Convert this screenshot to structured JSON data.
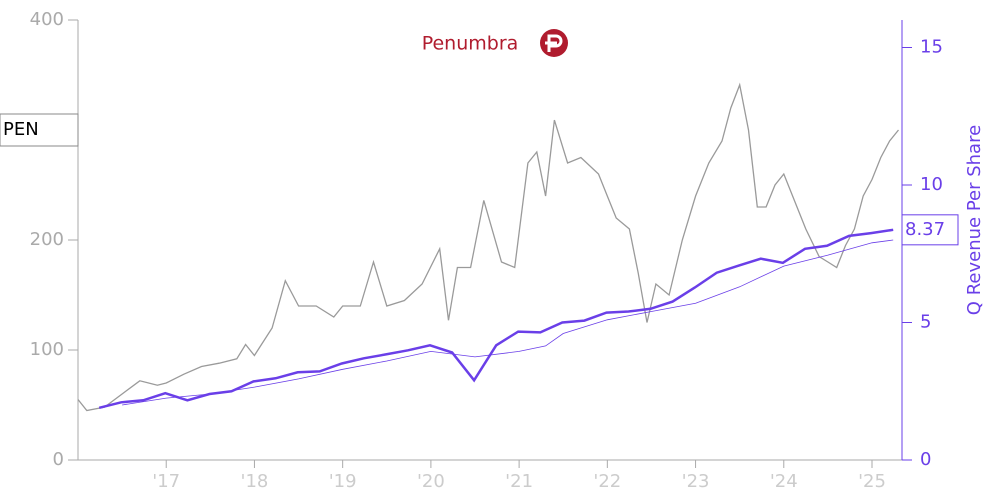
{
  "chart_data": {
    "type": "line",
    "logo": "Penumbra",
    "y2label": "Q Revenue Per Share",
    "xlim": [
      2016.0,
      2025.34
    ],
    "xticks": [
      {
        "value": 2017,
        "label": "'17"
      },
      {
        "value": 2018,
        "label": "'18"
      },
      {
        "value": 2019,
        "label": "'19"
      },
      {
        "value": 2020,
        "label": "'20"
      },
      {
        "value": 2021,
        "label": "'21"
      },
      {
        "value": 2022,
        "label": "'22"
      },
      {
        "value": 2023,
        "label": "'23"
      },
      {
        "value": 2024,
        "label": "'24"
      },
      {
        "value": 2025,
        "label": "'25"
      }
    ],
    "ylim": [
      0,
      400
    ],
    "yticks": [
      0,
      100,
      200,
      400
    ],
    "y2lim": [
      0,
      16
    ],
    "y2ticks": [
      0,
      5,
      10,
      15
    ],
    "series": [
      {
        "name": "PEN",
        "color": "#9a9a9a",
        "x": [
          2016.0,
          2016.1,
          2016.3,
          2016.5,
          2016.7,
          2016.9,
          2017.0,
          2017.2,
          2017.4,
          2017.6,
          2017.8,
          2017.9,
          2018.0,
          2018.2,
          2018.35,
          2018.5,
          2018.7,
          2018.9,
          2019.0,
          2019.2,
          2019.35,
          2019.5,
          2019.7,
          2019.9,
          2020.1,
          2020.2,
          2020.3,
          2020.45,
          2020.6,
          2020.8,
          2020.95,
          2021.1,
          2021.2,
          2021.3,
          2021.4,
          2021.55,
          2021.7,
          2021.9,
          2022.0,
          2022.1,
          2022.25,
          2022.35,
          2022.45,
          2022.55,
          2022.7,
          2022.85,
          2023.0,
          2023.15,
          2023.3,
          2023.4,
          2023.5,
          2023.6,
          2023.7,
          2023.8,
          2023.9,
          2024.0,
          2024.1,
          2024.25,
          2024.4,
          2024.5,
          2024.6,
          2024.7,
          2024.8,
          2024.9,
          2025.0,
          2025.1,
          2025.2,
          2025.3
        ],
        "values": [
          55,
          45,
          48,
          60,
          72,
          68,
          70,
          78,
          85,
          88,
          92,
          105,
          95,
          120,
          163,
          140,
          140,
          130,
          140,
          140,
          180,
          140,
          145,
          160,
          192,
          127,
          175,
          175,
          236,
          180,
          175,
          270,
          280,
          240,
          309,
          270,
          275,
          260,
          240,
          220,
          210,
          170,
          125,
          160,
          150,
          200,
          240,
          270,
          290,
          320,
          341,
          300,
          230,
          230,
          250,
          260,
          240,
          210,
          185,
          180,
          175,
          195,
          210,
          240,
          255,
          275,
          290,
          300
        ]
      },
      {
        "name": "Q Revenue Per Share",
        "color": "#6a3fe8",
        "axis": "y2",
        "x": [
          2016.24,
          2016.49,
          2016.74,
          2016.99,
          2017.24,
          2017.49,
          2017.74,
          2017.99,
          2018.24,
          2018.49,
          2018.74,
          2018.99,
          2019.24,
          2019.49,
          2019.74,
          2019.99,
          2020.24,
          2020.49,
          2020.74,
          2020.99,
          2021.24,
          2021.49,
          2021.74,
          2021.99,
          2022.24,
          2022.49,
          2022.74,
          2022.99,
          2023.24,
          2023.49,
          2023.74,
          2023.99,
          2024.24,
          2024.49,
          2024.74,
          2024.99,
          2025.24
        ],
        "values": [
          1.9,
          2.1,
          2.17,
          2.43,
          2.17,
          2.4,
          2.5,
          2.86,
          2.97,
          3.19,
          3.22,
          3.51,
          3.7,
          3.84,
          3.99,
          4.17,
          3.91,
          2.9,
          4.17,
          4.67,
          4.64,
          5.0,
          5.07,
          5.36,
          5.4,
          5.5,
          5.76,
          6.27,
          6.81,
          7.07,
          7.32,
          7.17,
          7.68,
          7.79,
          8.15,
          8.25,
          8.37
        ]
      },
      {
        "color": "#6a3fe8",
        "axis": "y2",
        "x": [
          2016.5,
          2017.0,
          2017.5,
          2018.0,
          2018.5,
          2019.0,
          2019.5,
          2020.0,
          2020.5,
          2021.0,
          2021.3,
          2021.5,
          2022.0,
          2022.5,
          2023.0,
          2023.5,
          2024.0,
          2024.5,
          2025.0,
          2025.24
        ],
        "values": [
          2.0,
          2.25,
          2.4,
          2.65,
          2.95,
          3.3,
          3.6,
          3.95,
          3.75,
          3.95,
          4.15,
          4.6,
          5.1,
          5.4,
          5.7,
          6.3,
          7.05,
          7.45,
          7.9,
          8.0
        ]
      }
    ]
  }
}
